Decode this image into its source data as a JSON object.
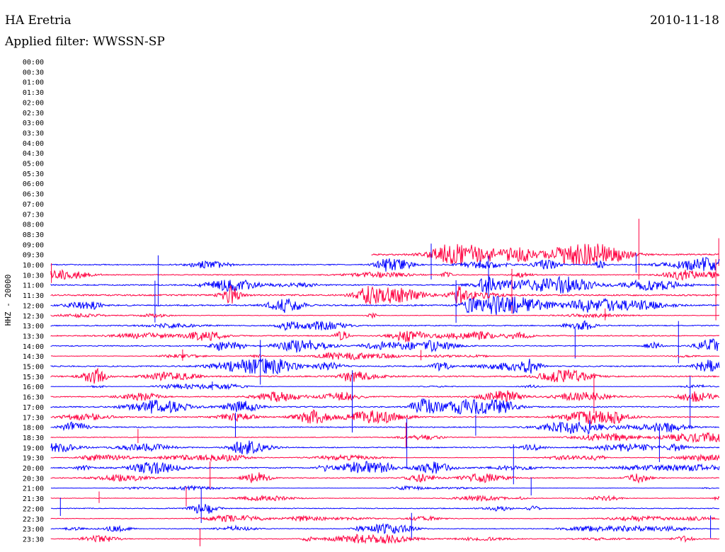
{
  "header": {
    "station": "HA Eretria",
    "date": "2010-11-18",
    "filter": "Applied filter: WWSSN-SP"
  },
  "colors": {
    "trace_a": "#0000ff",
    "trace_b": "#ff0040",
    "background": "#ffffff",
    "text": "#000000"
  },
  "chart_data": {
    "type": "line",
    "ylabel": "HHZ - 20000",
    "row_labels": [
      "00:00",
      "00:30",
      "01:00",
      "01:30",
      "02:00",
      "02:30",
      "03:00",
      "03:30",
      "04:00",
      "04:30",
      "05:00",
      "05:30",
      "06:00",
      "06:30",
      "07:00",
      "07:30",
      "08:00",
      "08:30",
      "09:00",
      "09:30",
      "10:00",
      "10:30",
      "11:00",
      "11:30",
      "12:00",
      "12:30",
      "13:00",
      "13:30",
      "14:00",
      "14:30",
      "15:00",
      "15:30",
      "16:00",
      "16:30",
      "17:00",
      "17:30",
      "18:00",
      "18:30",
      "19:00",
      "19:30",
      "20:00",
      "20:30",
      "21:00",
      "21:30",
      "22:00",
      "22:30",
      "23:00",
      "23:30"
    ],
    "recording_starts_at_row": 19,
    "recording_start_fraction": 0.48,
    "row_duration_minutes": 30,
    "alternating_trace_colors": true,
    "grid": false,
    "legend": "none",
    "approx_peak_amplitude_by_row": [
      0,
      0,
      0,
      0,
      0,
      0,
      0,
      0,
      0,
      0,
      0,
      0,
      0,
      0,
      0,
      0,
      0,
      0,
      0,
      0.9,
      0.6,
      0.5,
      0.7,
      0.9,
      0.8,
      0.3,
      0.6,
      0.6,
      0.6,
      0.3,
      0.7,
      0.8,
      0.2,
      0.6,
      0.7,
      0.7,
      0.6,
      0.4,
      0.6,
      0.3,
      0.7,
      0.6,
      0.2,
      0.3,
      0.5,
      0.3,
      0.4,
      0.4
    ]
  }
}
